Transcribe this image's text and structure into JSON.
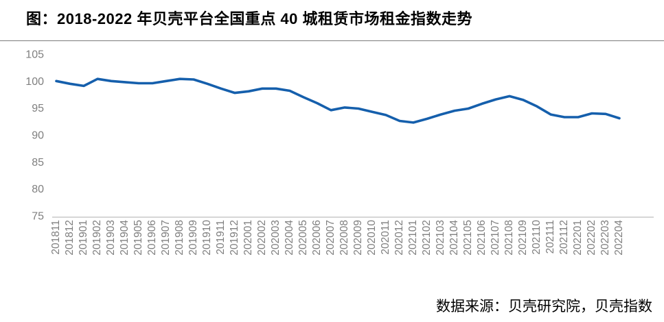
{
  "page": {
    "title": "图：2018-2022 年贝壳平台全国重点 40 城租赁市场租金指数走势",
    "source_note": "数据来源：贝壳研究院，贝壳指数"
  },
  "colors": {
    "line": "#155FAC",
    "axis_text": "#7F7F7F",
    "axis_line": "#C9C9C9",
    "separator": "#7A7A7A",
    "title_text": "#000000"
  },
  "chart_data": {
    "type": "line",
    "title": "图：2018-2022 年贝壳平台全国重点 40 城租赁市场租金指数走势",
    "xlabel": "",
    "ylabel": "",
    "ylim": [
      75,
      105
    ],
    "yticks": [
      105,
      100,
      95,
      90,
      85,
      80,
      75
    ],
    "grid": false,
    "legend": "none",
    "x_tick_rotation": -90,
    "categories": [
      "201811",
      "201812",
      "201901",
      "201902",
      "201903",
      "201904",
      "201905",
      "201906",
      "201907",
      "201908",
      "201909",
      "201910",
      "201911",
      "201912",
      "202001",
      "202002",
      "202003",
      "202004",
      "202005",
      "202006",
      "202007",
      "202008",
      "202009",
      "202010",
      "202011",
      "202012",
      "202101",
      "202102",
      "202103",
      "202104",
      "202105",
      "202106",
      "202107",
      "202108",
      "202109",
      "202110",
      "202111",
      "202112",
      "202201",
      "202202",
      "202203",
      "202204"
    ],
    "series": [
      {
        "name": "租金指数",
        "values": [
          100.0,
          99.5,
          99.1,
          100.4,
          100.0,
          99.8,
          99.6,
          99.6,
          100.0,
          100.4,
          100.3,
          99.5,
          98.6,
          97.8,
          98.1,
          98.6,
          98.6,
          98.2,
          97.0,
          95.9,
          94.6,
          95.1,
          94.9,
          94.3,
          93.7,
          92.6,
          92.3,
          93.0,
          93.8,
          94.5,
          94.9,
          95.8,
          96.6,
          97.2,
          96.5,
          95.3,
          93.8,
          93.3,
          93.3,
          94.0,
          93.9,
          93.1
        ]
      }
    ]
  }
}
